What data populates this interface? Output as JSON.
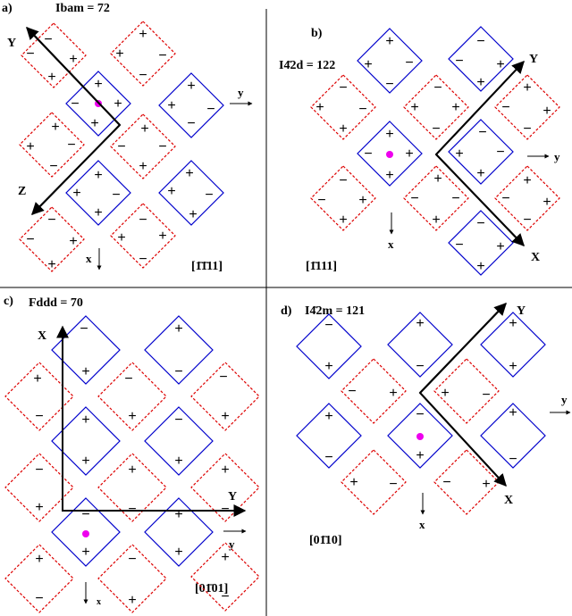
{
  "panels": [
    {
      "id": "a",
      "label": "a)",
      "title": "Ibam = 72",
      "index": "[1̄1̄11]",
      "axes": {
        "big1": "Y",
        "big2": "Z",
        "small1": "y",
        "small2": "x"
      }
    },
    {
      "id": "b",
      "label": "b)",
      "title": "I4̄2d = 122",
      "index": "[1̄111]",
      "axes": {
        "big1": "Y",
        "big2": "X",
        "small1": "y",
        "small2": "x"
      }
    },
    {
      "id": "c",
      "label": "c)",
      "title": "Fddd = 70",
      "index": "[01̄01]",
      "axes": {
        "big1": "X",
        "big2": "Y",
        "small1": "y",
        "small2": "x"
      }
    },
    {
      "id": "d",
      "label": "d)",
      "title": "I4̄2m = 121",
      "index": "[01̄10]",
      "axes": {
        "big1": "Y",
        "big2": "X",
        "small1": "y",
        "small2": "x"
      }
    }
  ],
  "legend": {
    "solid_color": "#0000cc",
    "dashed_color": "#dd0000",
    "center_dot_color": "#ee00ee",
    "axis_color": "#000000"
  },
  "signs": {
    "plus": "+",
    "minus": "−"
  }
}
